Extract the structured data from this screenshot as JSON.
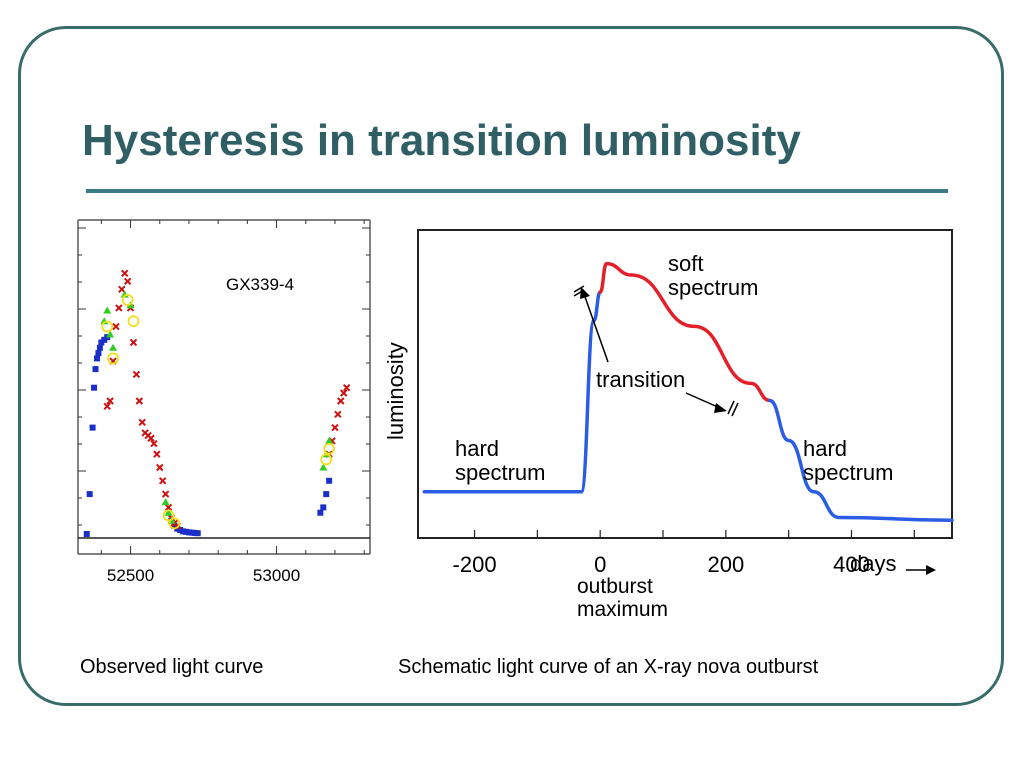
{
  "slide": {
    "title": "Hysteresis in transition luminosity",
    "caption_left": "Observed light curve",
    "caption_right": "Schematic light curve of an X-ray nova outburst"
  },
  "colors": {
    "title": "#2f5f64",
    "frame": "#3a6b6b",
    "hard": "#2b5ce6",
    "soft": "#e3202a",
    "green": "#33cc22",
    "yellow": "#f0e020",
    "blue_points": "#1a2fc8",
    "red_points": "#cc1111"
  },
  "chart_data": [
    {
      "type": "scatter",
      "label": "GX339-4",
      "x_ticks": [
        "52500",
        "53000"
      ],
      "series": [
        {
          "marker": "square",
          "color": "blue",
          "x": [
            52350,
            52360,
            52370,
            52375,
            52380,
            52385,
            52390,
            52395,
            52400,
            52410,
            52420,
            52640,
            52650,
            52660,
            52670,
            52680,
            52690,
            52700,
            52710,
            52720,
            52730,
            53150,
            53160,
            53170,
            53180
          ],
          "y": [
            0.0,
            0.15,
            0.4,
            0.55,
            0.62,
            0.66,
            0.68,
            0.7,
            0.72,
            0.73,
            0.74,
            0.05,
            0.03,
            0.02,
            0.015,
            0.01,
            0.008,
            0.006,
            0.005,
            0.004,
            0.003,
            0.08,
            0.1,
            0.15,
            0.2
          ]
        },
        {
          "marker": "x",
          "color": "red",
          "x": [
            52420,
            52430,
            52440,
            52450,
            52460,
            52470,
            52480,
            52490,
            52500,
            52510,
            52520,
            52530,
            52540,
            52550,
            52560,
            52570,
            52580,
            52590,
            52600,
            52610,
            52620,
            52630,
            52640,
            52650,
            52660,
            53180,
            53190,
            53200,
            53210,
            53220,
            53230,
            53240
          ],
          "y": [
            0.48,
            0.5,
            0.65,
            0.78,
            0.85,
            0.92,
            0.98,
            0.95,
            0.85,
            0.72,
            0.6,
            0.5,
            0.42,
            0.38,
            0.37,
            0.36,
            0.34,
            0.3,
            0.25,
            0.2,
            0.15,
            0.1,
            0.06,
            0.04,
            0.03,
            0.3,
            0.35,
            0.4,
            0.45,
            0.5,
            0.53,
            0.55
          ]
        },
        {
          "marker": "triangle",
          "color": "green",
          "x": [
            52410,
            52420,
            52430,
            52440,
            52480,
            52500,
            52620,
            52630,
            52640,
            53160,
            53170,
            53180
          ],
          "y": [
            0.8,
            0.84,
            0.75,
            0.7,
            0.9,
            0.86,
            0.12,
            0.08,
            0.05,
            0.25,
            0.3,
            0.35
          ]
        },
        {
          "marker": "circle",
          "color": "yellow",
          "x": [
            52420,
            52440,
            52490,
            52510,
            52630,
            52650,
            53170,
            53180
          ],
          "y": [
            0.78,
            0.66,
            0.88,
            0.8,
            0.07,
            0.04,
            0.28,
            0.32
          ]
        }
      ]
    },
    {
      "type": "line",
      "ylabel": "luminosity",
      "x_ticks": [
        "-200",
        "0",
        "200",
        "400"
      ],
      "xlabel": "days",
      "annotations": {
        "soft": [
          "soft",
          "spectrum"
        ],
        "hard_left": [
          "hard",
          "spectrum"
        ],
        "hard_right": [
          "hard",
          "spectrum"
        ],
        "transition": "transition",
        "outburst": [
          "outburst",
          "maximum"
        ]
      },
      "series": [
        {
          "phase": "hard",
          "x": [
            -280,
            -30,
            -10,
            0
          ],
          "y": [
            0.12,
            0.12,
            0.72,
            0.82
          ]
        },
        {
          "phase": "soft",
          "x": [
            0,
            10,
            50,
            150,
            240,
            270
          ],
          "y": [
            0.82,
            0.92,
            0.88,
            0.7,
            0.5,
            0.44
          ]
        },
        {
          "phase": "hard",
          "x": [
            270,
            300,
            340,
            380,
            560
          ],
          "y": [
            0.44,
            0.3,
            0.12,
            0.03,
            0.02
          ]
        }
      ]
    }
  ]
}
